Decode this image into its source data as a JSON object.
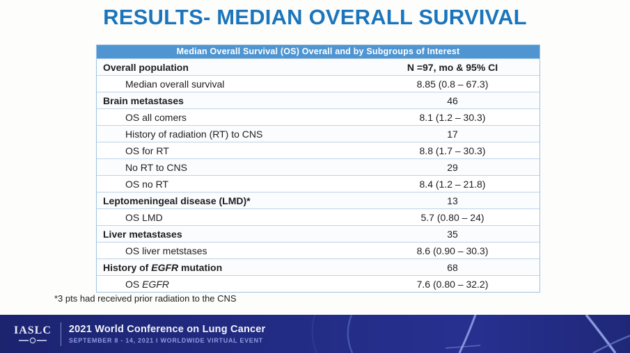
{
  "title": "RESULTS- MEDIAN OVERALL SURVIVAL",
  "table": {
    "header": "Median Overall Survival (OS) Overall and by Subgroups of Interest",
    "rows": [
      {
        "label": [
          {
            "text": "Overall population",
            "bold": true
          }
        ],
        "value": "N =97, mo & 95% CI",
        "value_bold": true,
        "indent": false
      },
      {
        "label": [
          {
            "text": "Median overall survival"
          }
        ],
        "value": "8.85 (0.8 – 67.3)",
        "indent": true
      },
      {
        "label": [
          {
            "text": "Brain metastases",
            "bold": true
          }
        ],
        "value": "46",
        "indent": false
      },
      {
        "label": [
          {
            "text": "OS all comers"
          }
        ],
        "value": "8.1 (1.2 – 30.3)",
        "indent": true
      },
      {
        "label": [
          {
            "text": "History of radiation (RT) to CNS"
          }
        ],
        "value": "17",
        "indent": true
      },
      {
        "label": [
          {
            "text": "OS for RT"
          }
        ],
        "value": "8.8 (1.7 – 30.3)",
        "indent": true
      },
      {
        "label": [
          {
            "text": "No RT to CNS"
          }
        ],
        "value": "29",
        "indent": true
      },
      {
        "label": [
          {
            "text": "OS no RT"
          }
        ],
        "value": "8.4 (1.2 – 21.8)",
        "indent": true
      },
      {
        "label": [
          {
            "text": "Leptomeningeal disease (LMD)*",
            "bold": true
          }
        ],
        "value": "13",
        "indent": false
      },
      {
        "label": [
          {
            "text": "OS LMD"
          }
        ],
        "value": "5.7 (0.80 – 24)",
        "indent": true
      },
      {
        "label": [
          {
            "text": "Liver metastases",
            "bold": true
          }
        ],
        "value": "35",
        "indent": false
      },
      {
        "label": [
          {
            "text": "OS liver metstases"
          }
        ],
        "value": "8.6 (0.90 – 30.3)",
        "indent": true
      },
      {
        "label": [
          {
            "text": "History of ",
            "bold": true
          },
          {
            "text": "EGFR",
            "bold": true,
            "italic": true
          },
          {
            "text": " mutation",
            "bold": true
          }
        ],
        "value": "68",
        "indent": false
      },
      {
        "label": [
          {
            "text": "OS "
          },
          {
            "text": "EGFR",
            "italic": true
          }
        ],
        "value": "7.6 (0.80 – 32.2)",
        "indent": true
      }
    ]
  },
  "footnote": "*3 pts had received prior radiation to the CNS",
  "footer": {
    "logo": "IASLC",
    "title": "2021 World Conference on Lung Cancer",
    "subtitle": "SEPTEMBER 8 - 14, 2021 I WORLDWIDE VIRTUAL EVENT"
  },
  "colors": {
    "title_blue": "#1b75bc",
    "table_header_bg": "#4e95d2",
    "table_border": "#9fc2e2",
    "footer_navy": "#222b82",
    "footer_subtitle": "#8d9de0"
  }
}
